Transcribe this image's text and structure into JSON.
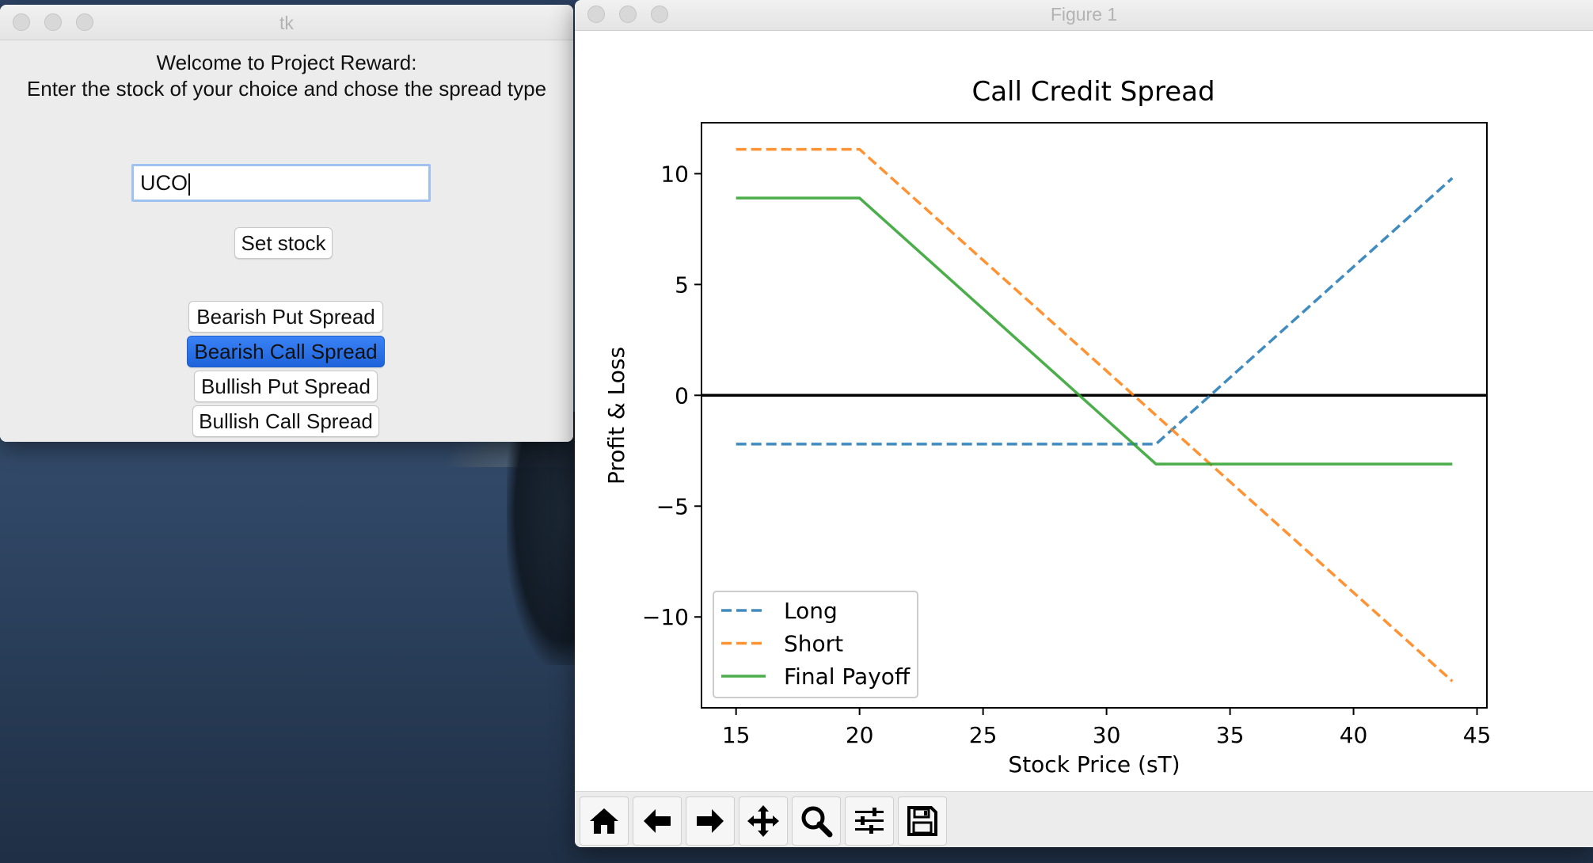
{
  "tk_window": {
    "title": "tk",
    "welcome_line1": "Welcome to Project Reward:",
    "welcome_line2": "Enter the stock of your choice and chose the spread type",
    "stock_input_value": "UCO",
    "set_stock_label": "Set stock",
    "spread_buttons": [
      {
        "label": "Bearish Put Spread",
        "active": false
      },
      {
        "label": "Bearish Call Spread",
        "active": true
      },
      {
        "label": "Bullish Put Spread",
        "active": false
      },
      {
        "label": "Bullish Call Spread",
        "active": false
      }
    ]
  },
  "figure_window": {
    "title": "Figure 1",
    "toolbar_icons": [
      "home-icon",
      "back-arrow-icon",
      "forward-arrow-icon",
      "pan-move-icon",
      "zoom-magnifier-icon",
      "configure-subplots-icon",
      "save-floppy-icon"
    ]
  },
  "chart_data": {
    "type": "line",
    "title": "Call Credit Spread",
    "xlabel": "Stock Price (sT)",
    "ylabel": "Profit & Loss",
    "xlim": [
      13.6,
      45.4
    ],
    "ylim": [
      -14.1,
      12.3
    ],
    "xticks": [
      15,
      20,
      25,
      30,
      35,
      40,
      45
    ],
    "yticks": [
      10,
      5,
      0,
      -5,
      -10
    ],
    "ytick_labels": [
      "10",
      "5",
      "0",
      "−5",
      "−10"
    ],
    "hline": 0,
    "legend_position": "lower-left",
    "series": [
      {
        "name": "Long",
        "color": "#1f77b4",
        "dashed": true,
        "x": [
          15,
          32,
          44
        ],
        "y": [
          -2.2,
          -2.2,
          9.8
        ]
      },
      {
        "name": "Short",
        "color": "#ff7f0e",
        "dashed": true,
        "x": [
          15,
          20,
          44
        ],
        "y": [
          11.1,
          11.1,
          -12.9
        ]
      },
      {
        "name": "Final Payoff",
        "color": "#2ca02c",
        "dashed": false,
        "x": [
          15,
          20,
          32,
          44
        ],
        "y": [
          8.9,
          8.9,
          -3.1,
          -3.1
        ]
      }
    ]
  }
}
